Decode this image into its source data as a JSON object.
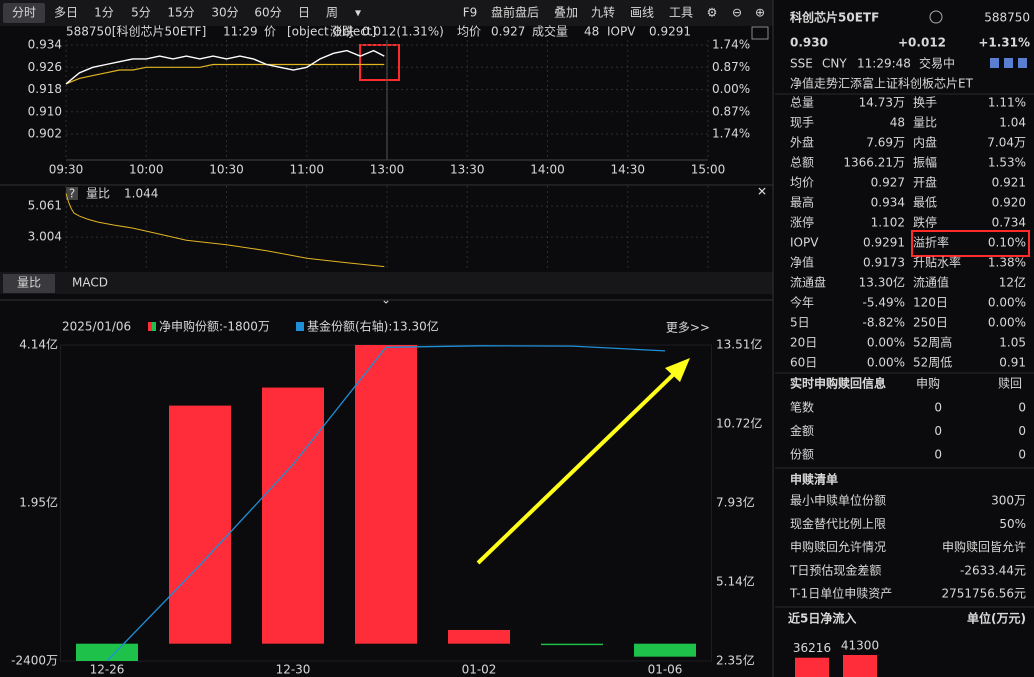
{
  "toolbar": {
    "tabs": [
      "分时",
      "多日",
      "1分",
      "5分",
      "15分",
      "30分",
      "60分",
      "日",
      "周"
    ],
    "tools": [
      "F9",
      "盘前盘后",
      "叠加",
      "九转",
      "画线",
      "工具"
    ]
  },
  "intraday": {
    "code_name": "588750[科创芯片50ETF]",
    "time": "11:29",
    "price_label": "价",
    "price": {
      "color": "#ffffff",
      "x": [
        0,
        5,
        10,
        15,
        20,
        25,
        30,
        35,
        40,
        45,
        50,
        55,
        60,
        65,
        70,
        75,
        80,
        85,
        90,
        95,
        100,
        105,
        110,
        115,
        119
      ],
      "values": [
        0.92,
        0.924,
        0.926,
        0.927,
        0.928,
        0.929,
        0.929,
        0.93,
        0.929,
        0.93,
        0.929,
        0.93,
        0.929,
        0.93,
        0.929,
        0.927,
        0.926,
        0.925,
        0.926,
        0.929,
        0.931,
        0.932,
        0.93,
        0.932,
        0.93
      ]
    },
    "change_label": "涨跌",
    "change": "0.012(1.31%)",
    "avg_label": "均价",
    "avg": "0.927",
    "volume_label": "成交量",
    "volume": "48",
    "iopv_label": "IOPV",
    "iopv": "0.9291",
    "ylim": [
      0.902,
      0.934
    ],
    "yticks": [
      0.934,
      0.926,
      0.918,
      {
        "value": 0.91,
        "label": "0.910"
      },
      0.902
    ],
    "ytick_colors": [
      "#ff3b3b",
      "#ff3b3b",
      "#d8d8d8",
      "#22c55e",
      "#22c55e"
    ],
    "pct_lim": [
      -1.74,
      1.74
    ],
    "pct_ticks": [
      {
        "value": 1.74,
        "label": "1.74%"
      },
      {
        "value": 0.87,
        "label": "0.87%"
      },
      {
        "value": 0,
        "label": "0.00%"
      },
      {
        "value": -0.87,
        "label": "0.87%"
      },
      {
        "value": -1.74,
        "label": "1.74%"
      }
    ],
    "xlim": [
      0,
      240
    ],
    "xticks": [
      {
        "value": 0,
        "label": "09:30"
      },
      {
        "value": 30,
        "label": "10:00"
      },
      {
        "value": 60,
        "label": "10:30"
      },
      {
        "value": 90,
        "label": "11:00"
      },
      {
        "value": 120,
        "label": "13:00"
      },
      {
        "value": 150,
        "label": "13:30"
      },
      {
        "value": 180,
        "label": "14:00"
      },
      {
        "value": 210,
        "label": "14:30"
      },
      {
        "value": 240,
        "label": "15:00"
      }
    ],
    "average": {
      "color": "#e0b422",
      "x": [
        0,
        5,
        10,
        15,
        20,
        25,
        30,
        35,
        40,
        45,
        50,
        55,
        60,
        65,
        70,
        75,
        80,
        85,
        90,
        95,
        100,
        105,
        110,
        115,
        119
      ],
      "values": [
        0.92,
        0.922,
        0.923,
        0.924,
        0.925,
        0.925,
        0.926,
        0.926,
        0.926,
        0.926,
        0.926,
        0.927,
        0.927,
        0.927,
        0.927,
        0.927,
        0.927,
        0.927,
        0.927,
        0.927,
        0.927,
        0.927,
        0.927,
        0.927,
        0.927
      ]
    }
  },
  "ratio": {
    "help": "?",
    "label": "量比",
    "value": "1.044",
    "color": "#e0b422",
    "ylim": [
      0.95,
      6.0
    ],
    "yticks": [
      5.061,
      3.004
    ],
    "x": [
      0,
      1,
      2,
      3,
      5,
      8,
      12,
      18,
      25,
      35,
      45,
      60,
      75,
      90,
      105,
      119
    ],
    "values": [
      5.9,
      5.3,
      4.9,
      4.6,
      4.4,
      4.2,
      4.0,
      3.8,
      3.6,
      3.2,
      2.8,
      2.5,
      2.1,
      1.6,
      1.3,
      1.044
    ]
  },
  "tabs2": [
    "量比",
    "MACD"
  ],
  "flow": {
    "type": "bar",
    "date": "2025/01/06",
    "more": "更多>>",
    "categories": [
      "12-26",
      null,
      "12-30",
      null,
      "01-02",
      null,
      "01-06"
    ],
    "down_color": "#1ec24b",
    "series": [
      {
        "name": "净申购份额:-1800万",
        "color": "#ff2d3a",
        "values": [
          -0.24,
          3.3,
          3.55,
          4.14,
          0.19,
          -0.02,
          -0.18
        ]
      },
      {
        "name": "基金份额(右轴):13.30亿",
        "color": "#1f8fd6",
        "axis": "y2",
        "values": [
          2.35,
          5.74,
          9.29,
          13.43,
          13.48,
          13.47,
          13.3
        ]
      }
    ],
    "ylim": [
      -0.24,
      4.14
    ],
    "yticks": [
      {
        "value": 4.14,
        "label": "4.14亿"
      },
      {
        "value": 1.95,
        "label": "1.95亿"
      },
      {
        "value": -0.24,
        "label": "-2400万"
      }
    ],
    "y2lim": [
      2.35,
      13.51
    ],
    "y2ticks": [
      {
        "value": 13.51,
        "label": "13.51亿"
      },
      {
        "value": 10.72,
        "label": "10.72亿"
      },
      {
        "value": 7.93,
        "label": "7.93亿"
      },
      {
        "value": 5.14,
        "label": "5.14亿"
      },
      {
        "value": 2.35,
        "label": "2.35亿"
      }
    ]
  },
  "quote": {
    "name": "科创芯片50ETF",
    "code": "588750",
    "price": "0.930",
    "change": "+0.012",
    "change_pct": "+1.31%",
    "market": "SSE",
    "currency": "CNY",
    "time": "11:29:48",
    "status": "交易中",
    "nav_tab": "净值走势",
    "fund_name": "汇添富上证科创板芯片ET"
  },
  "stats": {
    "rows": [
      [
        "总量",
        "14.73万",
        "换手",
        "1.11%"
      ],
      [
        "现手",
        "48",
        "量比",
        "1.04"
      ],
      [
        "外盘",
        "7.69万",
        "内盘",
        "7.04万"
      ],
      [
        "总额",
        "1366.21万",
        "振幅",
        "1.53%"
      ],
      [
        "均价",
        "0.927",
        "开盘",
        "0.921"
      ],
      [
        "最高",
        "0.934",
        "最低",
        "0.920"
      ],
      [
        "涨停",
        "1.102",
        "跌停",
        "0.734"
      ],
      [
        "IOPV",
        "0.9291",
        "溢折率",
        "0.10%"
      ],
      [
        "净值",
        "0.9173",
        "升贴水率",
        "1.38%"
      ],
      [
        "流通盘",
        "13.30亿",
        "流通值",
        "12亿"
      ],
      [
        "今年",
        "-5.49%",
        "120日",
        "0.00%"
      ],
      [
        "5日",
        "-8.82%",
        "250日",
        "0.00%"
      ],
      [
        "20日",
        "0.00%",
        "52周高",
        "1.05"
      ],
      [
        "60日",
        "0.00%",
        "52周低",
        "0.91"
      ]
    ],
    "value_colors": [
      [
        "#e8e8e8",
        "#e8e8e8"
      ],
      [
        "#e8e8e8",
        "#e8e8e8"
      ],
      [
        "#ff3b3b",
        "#22c55e"
      ],
      [
        "#e8e8e8",
        "#e8e8e8"
      ],
      [
        "#ff3b3b",
        "#ff3b3b"
      ],
      [
        "#ff3b3b",
        "#ff3b3b"
      ],
      [
        "#ff3b3b",
        "#22c55e"
      ],
      [
        "#e8e8e8",
        "#ff3b3b"
      ],
      [
        "#22c55e",
        "#ff3b3b"
      ],
      [
        "#e8e8e8",
        "#e8e8e8"
      ],
      [
        "#22c55e",
        "#e8e8e8"
      ],
      [
        "#22c55e",
        "#e8e8e8"
      ],
      [
        "#e8e8e8",
        "#e8e8e8"
      ],
      [
        "#e8e8e8",
        "#e8e8e8"
      ]
    ]
  },
  "realtime": {
    "title": "实时申购赎回信息",
    "columns": [
      "申购",
      "赎回"
    ],
    "rows": [
      [
        "笔数",
        "0",
        "0"
      ],
      [
        "金额",
        "0",
        "0"
      ],
      [
        "份额",
        "0",
        "0"
      ]
    ]
  },
  "creation_list": {
    "title": "申赎清单",
    "rows": [
      [
        "最小申赎单位份额",
        "300万"
      ],
      [
        "现金替代比例上限",
        "50%"
      ],
      [
        "申购赎回允许情况",
        "申购赎回皆允许"
      ],
      [
        "T日预估现金差额",
        "-2633.44元"
      ],
      [
        "T-1日单位申赎资产",
        "2751756.56元"
      ]
    ]
  },
  "flow5": {
    "title": "近5日净流入",
    "unit": "单位(万元)",
    "color": "#ff2d3a",
    "values": [
      36216,
      41300
    ]
  }
}
